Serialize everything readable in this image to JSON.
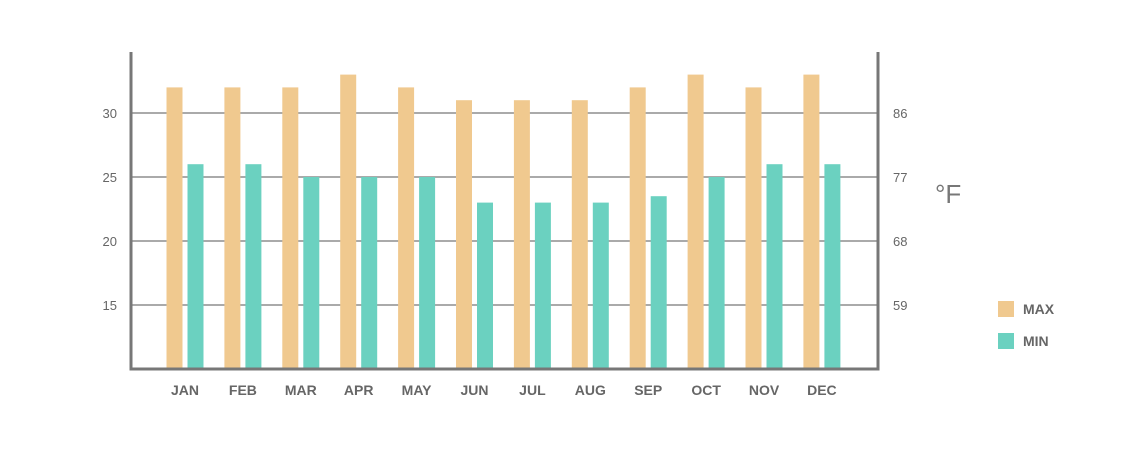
{
  "chart_data": {
    "type": "bar",
    "categories": [
      "JAN",
      "FEB",
      "MAR",
      "APR",
      "MAY",
      "JUN",
      "JUL",
      "AUG",
      "SEP",
      "OCT",
      "NOV",
      "DEC"
    ],
    "series": [
      {
        "name": "MAX",
        "color": "#f0c98f",
        "values": [
          32,
          32,
          32,
          33,
          32,
          31,
          31,
          31,
          32,
          33,
          32,
          33
        ]
      },
      {
        "name": "MIN",
        "color": "#6bd1c0",
        "values": [
          26,
          26,
          25,
          25,
          25,
          23,
          23,
          23,
          23.5,
          25,
          26,
          26
        ]
      }
    ],
    "ylim": [
      10,
      34.4
    ],
    "y_ticks_left": [
      15,
      20,
      25,
      30
    ],
    "y_ticks_right": [
      {
        "value": 15,
        "label": "59"
      },
      {
        "value": 20,
        "label": "68"
      },
      {
        "value": 25,
        "label": "77"
      },
      {
        "value": 30,
        "label": "86"
      }
    ],
    "right_unit": "°F",
    "grid": true,
    "legend_position": "right"
  }
}
